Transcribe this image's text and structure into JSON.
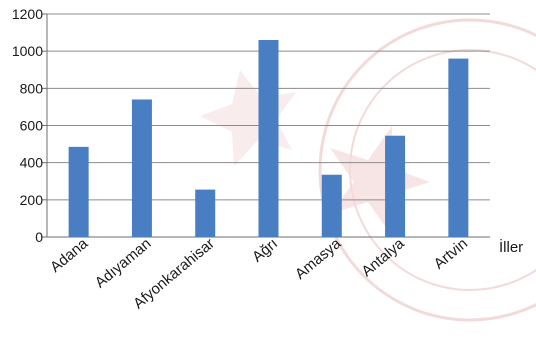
{
  "chart_data": {
    "type": "bar",
    "title": "",
    "xlabel": "İller",
    "ylabel": "",
    "categories": [
      "Adana",
      "Adıyaman",
      "Afyonkarahisar",
      "Ağrı",
      "Amasya",
      "Antalya",
      "Artvin"
    ],
    "values": [
      485,
      740,
      255,
      1060,
      335,
      545,
      960
    ],
    "ylim": [
      0,
      1200
    ],
    "yticks": [
      0,
      200,
      400,
      600,
      800,
      1000,
      1200
    ],
    "grid": true,
    "legend": "none",
    "bar_color": "#4a7ec2",
    "watermark_color": "#f3dada"
  }
}
